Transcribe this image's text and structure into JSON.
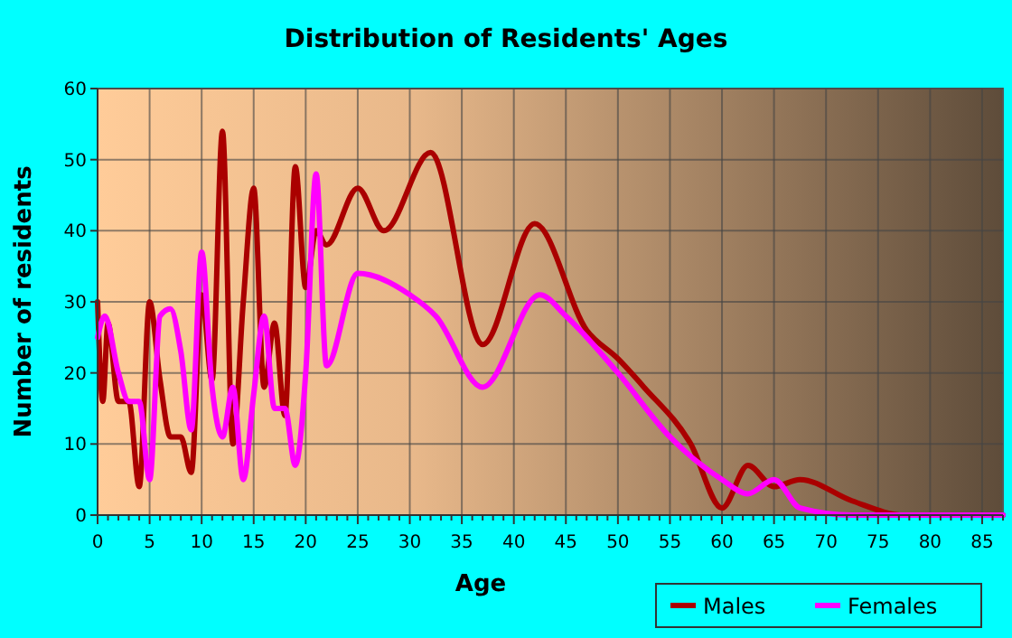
{
  "chart_data": {
    "type": "line",
    "title": "Distribution of Residents' Ages",
    "xlabel": "Age",
    "ylabel": "Number of residents",
    "xlim": [
      0,
      87
    ],
    "xticks": [
      0,
      5,
      10,
      15,
      20,
      25,
      30,
      35,
      40,
      45,
      50,
      55,
      60,
      65,
      70,
      75,
      80,
      85
    ],
    "ylim": [
      0,
      60
    ],
    "yticks": [
      0,
      10,
      20,
      30,
      40,
      50,
      60
    ],
    "grid": true,
    "legend": "bottom right",
    "series": [
      {
        "name": "Males",
        "color": "#aa0000",
        "x": [
          0,
          0.5,
          1,
          2,
          3,
          4,
          5,
          6,
          7,
          8,
          9,
          10,
          11,
          12,
          13,
          14,
          15,
          16,
          17,
          18,
          19,
          20,
          21,
          22,
          25,
          27.5,
          32,
          37,
          42,
          47,
          50,
          52.5,
          57,
          60,
          62.5,
          65,
          67.5,
          72.5,
          77.5,
          85,
          87
        ],
        "values": [
          30,
          16,
          27,
          16,
          16,
          4,
          30,
          19,
          11,
          11,
          6,
          31,
          19,
          54,
          10,
          30,
          46,
          18,
          27,
          14,
          49,
          32,
          40,
          38,
          46,
          40,
          51,
          24,
          41,
          26,
          22,
          18,
          10,
          1,
          7,
          4,
          5,
          2,
          0,
          0,
          0
        ]
      },
      {
        "name": "Females",
        "color": "#ff00ff",
        "x": [
          0,
          0.7,
          2,
          3,
          4,
          5,
          6,
          7,
          8,
          9,
          10,
          11,
          12,
          13,
          14,
          15,
          16,
          17,
          18,
          19,
          20,
          21,
          22,
          25,
          30,
          32.5,
          37,
          42.5,
          45,
          50,
          55,
          60,
          62.5,
          65,
          67.5,
          72.5,
          80,
          87
        ],
        "values": [
          25,
          28,
          20,
          16,
          16,
          5,
          28,
          29,
          23,
          12,
          37,
          18,
          11,
          18,
          5,
          17,
          28,
          15,
          15,
          7,
          20,
          48,
          21,
          34,
          31,
          28,
          18,
          31,
          28,
          20,
          11,
          5,
          3,
          5,
          1,
          0,
          0,
          0
        ]
      }
    ]
  }
}
